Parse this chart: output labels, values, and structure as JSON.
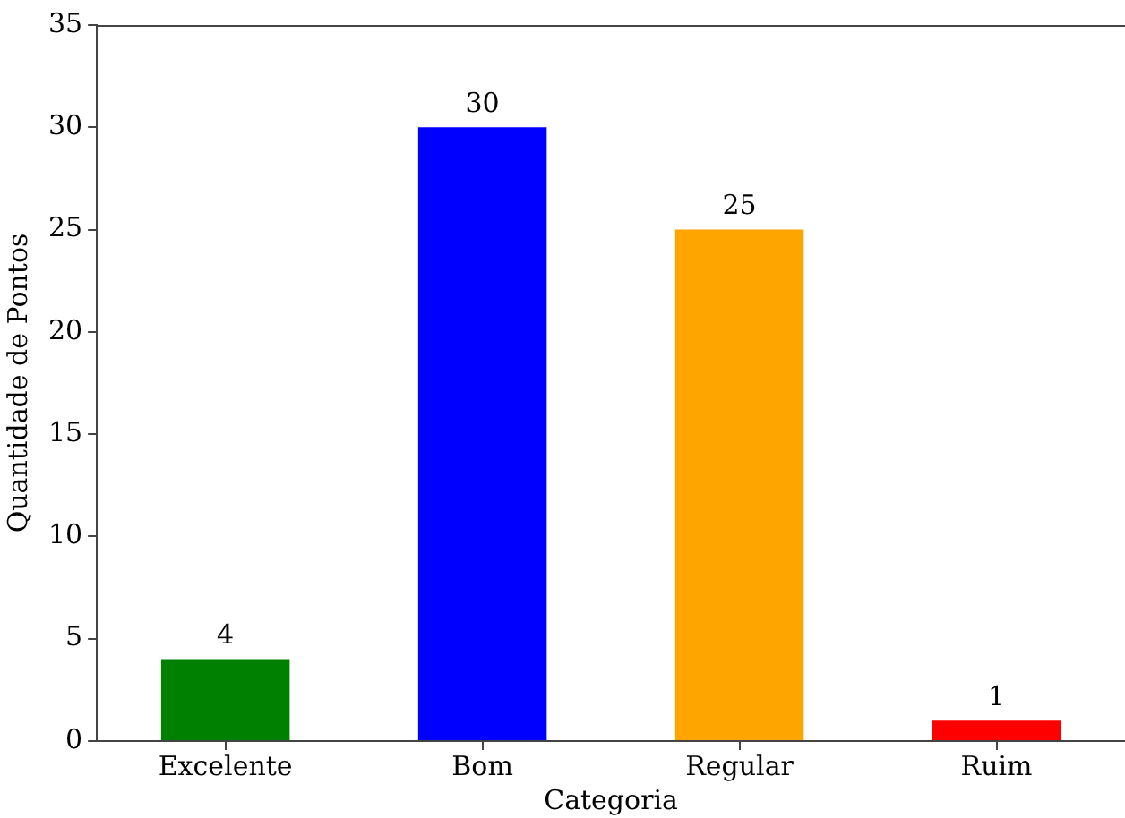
{
  "chart_data": {
    "type": "bar",
    "xlabel": "Categoria",
    "ylabel": "Quantidade de Pontos",
    "categories": [
      "Excelente",
      "Bom",
      "Regular",
      "Ruim"
    ],
    "values": [
      4,
      30,
      25,
      1
    ],
    "colors": [
      "#008000",
      "#0000ff",
      "#ffa500",
      "#ff0000"
    ],
    "ylim": [
      0,
      35
    ],
    "yticks": [
      0,
      5,
      10,
      15,
      20,
      25,
      30,
      35
    ],
    "grid": false,
    "data_labels": true
  }
}
